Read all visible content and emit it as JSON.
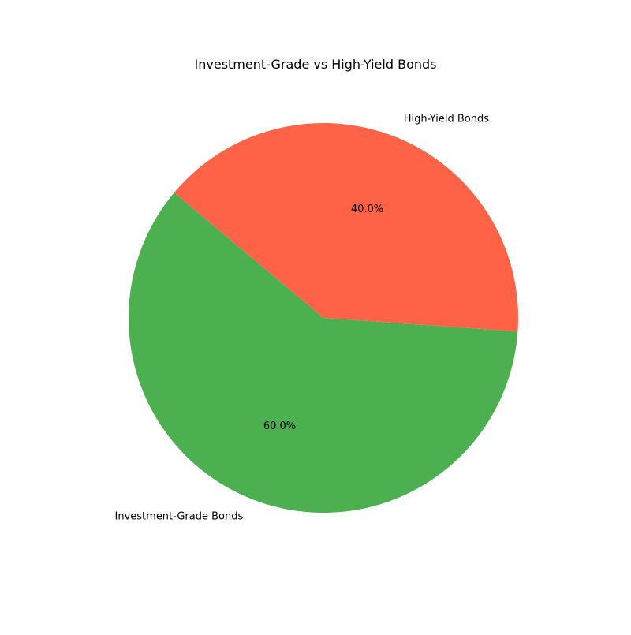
{
  "chart_data": {
    "type": "pie",
    "title": "Investment-Grade vs High-Yield Bonds",
    "categories": [
      "Investment-Grade Bonds",
      "High-Yield Bonds"
    ],
    "values": [
      60,
      40
    ],
    "percent_labels": [
      "60.0%",
      "40.0%"
    ],
    "colors": [
      "#4caf50",
      "#ff6347"
    ],
    "start_angle_deg": 140,
    "direction": "counterclockwise"
  }
}
